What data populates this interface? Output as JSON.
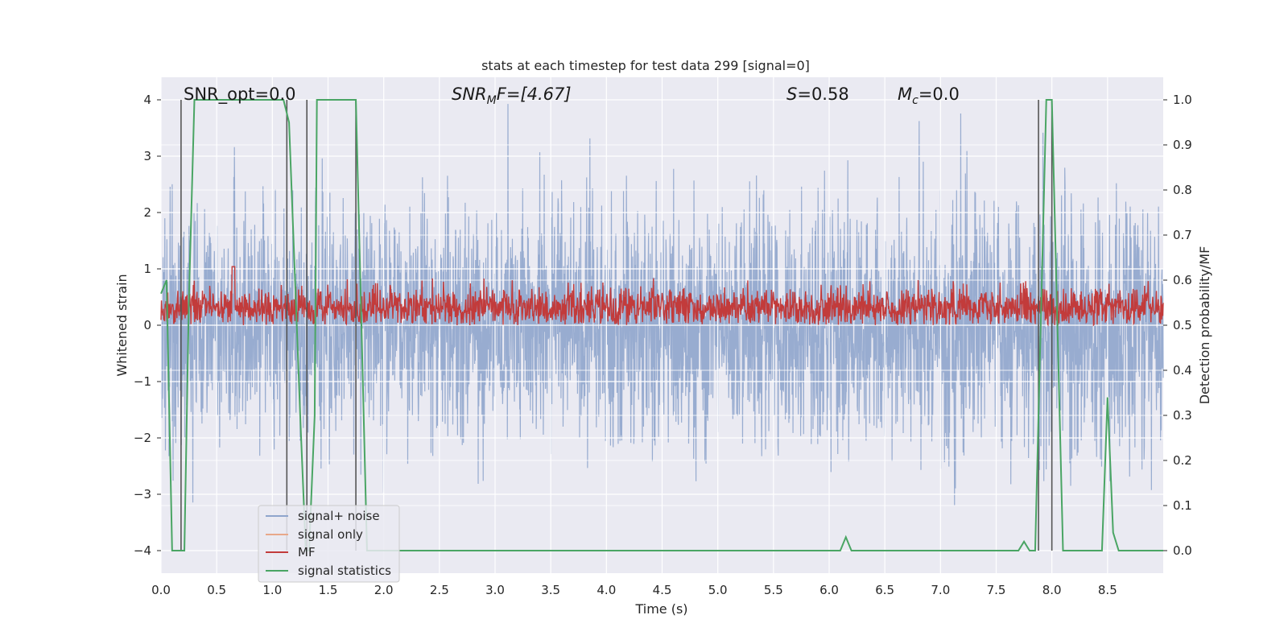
{
  "chart_data": {
    "type": "line",
    "title": "stats at each timestep for test data 299 [signal=0]",
    "xlabel": "Time (s)",
    "ylabel": "Whitened strain",
    "y2label": "Detection probability/MF",
    "xlim": [
      0,
      9.0
    ],
    "ylim": [
      -4.4,
      4.4
    ],
    "y2lim": [
      -0.05,
      1.05
    ],
    "xticks": [
      "0.0",
      "0.5",
      "1.0",
      "1.5",
      "2.0",
      "2.5",
      "3.0",
      "3.5",
      "4.0",
      "4.5",
      "5.0",
      "5.5",
      "6.0",
      "6.5",
      "7.0",
      "7.5",
      "8.0",
      "8.5"
    ],
    "yticks": [
      "−4",
      "−3",
      "−2",
      "−1",
      "0",
      "1",
      "2",
      "3",
      "4"
    ],
    "y2ticks": [
      "0.0",
      "0.1",
      "0.2",
      "0.3",
      "0.4",
      "0.5",
      "0.6",
      "0.7",
      "0.8",
      "0.9",
      "1.0"
    ],
    "grid": true,
    "legend_position": "lower-left",
    "annotations": {
      "snr_opt": "SNR_opt=0.0",
      "snr_mf_prefix": "SNR",
      "snr_mf_sub": "M",
      "snr_mf_suffix": "F=[4.67]",
      "s_italic": "S",
      "s_value": "=0.58",
      "mc_italic": "M",
      "mc_sub": "c",
      "mc_value": "=0.0"
    },
    "series": [
      {
        "name": "signal+ noise",
        "color": "#8fa5cc",
        "description": "whitened noise, symmetric around 0, amplitude ~ ±2.5, occasional spikes to ±4"
      },
      {
        "name": "signal only",
        "color": "#e8a88a",
        "values": []
      },
      {
        "name": "MF",
        "color": "#c23b3b",
        "description": "matched-filter output on right axis, fluctuating ~0.50–0.60, peak ~0.63 at t≈0.65"
      },
      {
        "name": "signal statistics",
        "color": "#4aa564",
        "x": [
          0.0,
          0.05,
          0.1,
          0.12,
          0.15,
          0.19,
          0.21,
          0.25,
          0.3,
          0.35,
          1.1,
          1.15,
          1.25,
          1.3,
          1.33,
          1.38,
          1.4,
          1.45,
          1.75,
          1.8,
          1.85,
          1.9,
          6.1,
          6.15,
          6.2,
          7.7,
          7.75,
          7.8,
          7.85,
          7.9,
          7.95,
          8.0,
          8.05,
          8.1,
          8.15,
          8.4,
          8.45,
          8.5,
          8.55,
          8.6,
          9.0
        ],
        "values": [
          0.57,
          0.6,
          0.0,
          0.0,
          0.0,
          0.0,
          0.0,
          0.55,
          1.0,
          1.0,
          1.0,
          0.95,
          0.3,
          0.0,
          0.0,
          0.3,
          1.0,
          1.0,
          1.0,
          0.5,
          0.0,
          0.0,
          0.0,
          0.03,
          0.0,
          0.0,
          0.02,
          0.0,
          0.0,
          0.5,
          1.0,
          1.0,
          0.5,
          0.0,
          0.0,
          0.0,
          0.0,
          0.34,
          0.04,
          0.0,
          0.0
        ]
      }
    ],
    "vertical_lines_x": [
      0.18,
      1.13,
      1.31,
      1.75,
      7.88,
      8.0
    ],
    "vertical_lines_color": "#555555"
  }
}
